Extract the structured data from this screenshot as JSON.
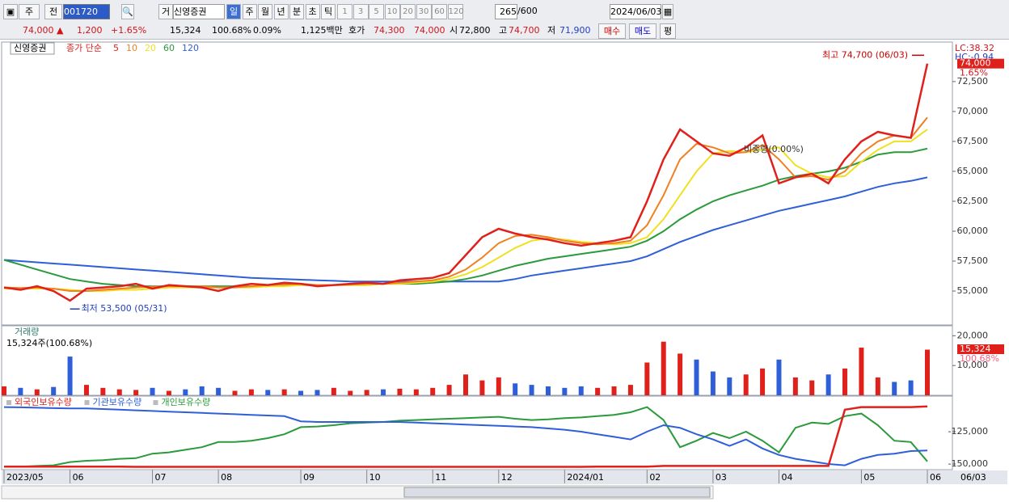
{
  "toolbar": {
    "period": "주",
    "prev": "전",
    "code": "001720",
    "market": "거",
    "name": "신영증권",
    "intervals": [
      "일",
      "주",
      "월",
      "년",
      "분",
      "초",
      "틱"
    ],
    "units": [
      "1",
      "3",
      "5",
      "10",
      "20",
      "30",
      "60",
      "120"
    ],
    "count": "265",
    "max": "/600",
    "date": "2024/06/03"
  },
  "quote": {
    "price": "74,000 ▲",
    "change": "1,200",
    "rate": "+1.65%",
    "volume": "15,324",
    "volume_rate": "100.68%",
    "turnover": "0.09%",
    "amount": "1,125백만",
    "ask_label": "호가",
    "ask": "74,300",
    "bid": "74,000",
    "open_label": "시",
    "open": "72,800",
    "high_label": "고",
    "high": "74,700",
    "low_label": "저",
    "low": "71,900",
    "buy": "매수",
    "sell": "매도",
    "avg": "평"
  },
  "chart_data": [
    {
      "type": "line",
      "title": "신영증권",
      "legend_title": "종가 단순",
      "indicators": [
        "LC:38.32",
        "HC:-0.94"
      ],
      "ylim": [
        52300,
        75600
      ],
      "yticks": [
        {
          "value": 55000,
          "label": "55,000"
        },
        {
          "value": 57500,
          "label": "57,500"
        },
        {
          "value": 60000,
          "label": "60,000"
        },
        {
          "value": 62500,
          "label": "62,500"
        },
        {
          "value": 65000,
          "label": "65,000"
        },
        {
          "value": 67500,
          "label": "67,500"
        },
        {
          "value": 70000,
          "label": "70,000"
        },
        {
          "value": 72500,
          "label": "72,500"
        }
      ],
      "grid": false,
      "high": {
        "label": "최고 74,700 (06/03)",
        "value": 74700
      },
      "low": {
        "label": "최저 53,500 (05/31)",
        "value": 53500
      },
      "note": "비중량(0.00%)",
      "last": {
        "value": 74000,
        "label": "74,000",
        "change": "1.65%"
      },
      "series": [
        {
          "name": "5",
          "color": "#e0201b",
          "values": [
            55300,
            55100,
            55400,
            55000,
            54200,
            55200,
            55300,
            55400,
            55600,
            55200,
            55500,
            55400,
            55300,
            55000,
            55400,
            55600,
            55500,
            55700,
            55600,
            55400,
            55500,
            55600,
            55700,
            55600,
            55900,
            56000,
            56100,
            56500,
            58000,
            59500,
            60200,
            59800,
            59500,
            59300,
            59000,
            58800,
            59000,
            59200,
            59500,
            62500,
            66000,
            68500,
            67500,
            66500,
            66300,
            67000,
            68000,
            64000,
            64500,
            64800,
            64000,
            66000,
            67500,
            68300,
            68000,
            67800,
            74000
          ]
        },
        {
          "name": "10",
          "color": "#f08020",
          "values": [
            55300,
            55250,
            55300,
            55200,
            55000,
            55000,
            55100,
            55200,
            55300,
            55350,
            55400,
            55400,
            55400,
            55300,
            55300,
            55400,
            55500,
            55550,
            55600,
            55500,
            55500,
            55550,
            55600,
            55600,
            55700,
            55800,
            55900,
            56200,
            56800,
            57800,
            59000,
            59600,
            59700,
            59500,
            59200,
            59000,
            58900,
            59000,
            59200,
            60500,
            63000,
            66000,
            67300,
            67000,
            66500,
            66600,
            67200,
            66000,
            64500,
            64600,
            64300,
            65000,
            66500,
            67500,
            68000,
            67800,
            69500
          ]
        },
        {
          "name": "20",
          "color": "#f0e020",
          "values": [
            55200,
            55200,
            55200,
            55200,
            55100,
            55000,
            55000,
            55100,
            55100,
            55200,
            55300,
            55300,
            55300,
            55300,
            55300,
            55300,
            55400,
            55400,
            55500,
            55500,
            55500,
            55500,
            55500,
            55600,
            55600,
            55700,
            55800,
            56000,
            56400,
            57000,
            57800,
            58600,
            59200,
            59400,
            59300,
            59100,
            59000,
            58900,
            59000,
            59500,
            61000,
            63000,
            65000,
            66500,
            66700,
            66600,
            66800,
            67000,
            65500,
            64800,
            64500,
            64600,
            65800,
            66800,
            67500,
            67500,
            68500
          ]
        },
        {
          "name": "60",
          "color": "#2a9a3a",
          "values": [
            57600,
            57200,
            56800,
            56400,
            56000,
            55800,
            55600,
            55500,
            55400,
            55400,
            55400,
            55400,
            55400,
            55400,
            55400,
            55400,
            55400,
            55500,
            55500,
            55500,
            55500,
            55500,
            55500,
            55600,
            55600,
            55600,
            55700,
            55800,
            56000,
            56300,
            56700,
            57100,
            57400,
            57700,
            57900,
            58100,
            58300,
            58500,
            58700,
            59200,
            60000,
            61000,
            61800,
            62500,
            63000,
            63400,
            63800,
            64300,
            64600,
            64800,
            65000,
            65300,
            65800,
            66400,
            66600,
            66600,
            66900
          ]
        },
        {
          "name": "120",
          "color": "#2f5fd8",
          "values": [
            57600,
            57500,
            57400,
            57300,
            57200,
            57100,
            57000,
            56900,
            56800,
            56700,
            56600,
            56500,
            56400,
            56300,
            56200,
            56100,
            56050,
            56000,
            55950,
            55900,
            55850,
            55800,
            55800,
            55800,
            55800,
            55800,
            55800,
            55800,
            55800,
            55800,
            55800,
            56000,
            56300,
            56500,
            56700,
            56900,
            57100,
            57300,
            57500,
            57900,
            58500,
            59100,
            59600,
            60100,
            60500,
            60900,
            61300,
            61700,
            62000,
            62300,
            62600,
            62900,
            63300,
            63700,
            64000,
            64200,
            64500
          ]
        }
      ]
    },
    {
      "type": "bar",
      "title": "거래량",
      "subtitle": "15,324주(100.68%)",
      "color": "#e0201b",
      "down_color": "#2f5fd8",
      "ylim": [
        0,
        22800
      ],
      "yticks": [
        {
          "value": 10000,
          "label": "10,000"
        },
        {
          "value": 20000,
          "label": "20,000"
        }
      ],
      "last": {
        "label": "15,324",
        "rate": "100.68%"
      },
      "values": [
        3000,
        2500,
        2000,
        2800,
        13000,
        3500,
        2500,
        2000,
        1800,
        2500,
        1500,
        2000,
        3000,
        2500,
        1500,
        2000,
        1800,
        2000,
        1500,
        1800,
        2500,
        1500,
        1800,
        2000,
        2200,
        2000,
        2500,
        3500,
        7000,
        5000,
        6000,
        4000,
        3500,
        3000,
        2500,
        3000,
        2500,
        3000,
        3500,
        11000,
        18000,
        14000,
        12000,
        8000,
        6000,
        7000,
        9000,
        12000,
        6000,
        5000,
        7000,
        9000,
        16000,
        6000,
        4500,
        5000,
        15324
      ]
    },
    {
      "type": "line",
      "cursor_label": "06/03",
      "categories": [
        "2023/05",
        null,
        null,
        null,
        "06",
        null,
        null,
        null,
        null,
        "07",
        null,
        null,
        null,
        "08",
        null,
        null,
        null,
        null,
        "09",
        null,
        null,
        null,
        "10",
        null,
        null,
        null,
        "11",
        null,
        null,
        null,
        "12",
        null,
        null,
        null,
        "2024/01",
        null,
        null,
        null,
        null,
        "02",
        null,
        null,
        null,
        "03",
        null,
        null,
        null,
        "04",
        null,
        null,
        null,
        null,
        "05",
        null,
        null,
        null,
        "06"
      ],
      "ylim": [
        -153750,
        -98750
      ],
      "yticks": [
        {
          "value": -125000,
          "label": "-125,000"
        },
        {
          "value": -150000,
          "label": "-150,000"
        }
      ],
      "series": [
        {
          "name": "외국인보유수량",
          "color": "#e0201b",
          "values": [
            -152000,
            -152000,
            -152000,
            -152000,
            -152000,
            -152000,
            -152000,
            -152000,
            -152200,
            -152200,
            -152200,
            -152200,
            -152200,
            -152200,
            -152200,
            -152200,
            -152200,
            -152200,
            -152200,
            -152200,
            -152200,
            -152200,
            -152200,
            -152200,
            -152200,
            -152200,
            -152200,
            -152200,
            -152200,
            -152200,
            -152200,
            -152200,
            -152200,
            -152200,
            -152200,
            -152200,
            -152000,
            -152000,
            -152000,
            -152000,
            -151500,
            -151500,
            -151500,
            -151500,
            -151500,
            -151500,
            -151500,
            -151500,
            -151500,
            -151500,
            -151500,
            -108000,
            -106000,
            -106000,
            -106000,
            -106000,
            -105500
          ]
        },
        {
          "name": "기관보유수량",
          "color": "#2f5fd8",
          "values": [
            -106000,
            -106200,
            -106500,
            -106800,
            -107000,
            -107000,
            -107500,
            -108000,
            -108500,
            -109000,
            -109500,
            -110000,
            -110500,
            -111000,
            -111500,
            -112000,
            -112500,
            -113000,
            -117000,
            -117500,
            -117500,
            -117500,
            -117500,
            -117500,
            -117500,
            -118000,
            -118500,
            -119000,
            -119500,
            -120000,
            -120500,
            -121000,
            -121500,
            -122500,
            -123500,
            -125000,
            -127000,
            -129000,
            -131000,
            -125000,
            -120000,
            -122000,
            -127000,
            -131000,
            -136000,
            -131000,
            -138000,
            -143000,
            -146000,
            -148000,
            -150000,
            -151000,
            -146000,
            -143000,
            -142000,
            -140000,
            -139500
          ]
        },
        {
          "name": "개인보유수량",
          "color": "#2a9a3a",
          "values": [
            -152000,
            -152000,
            -151500,
            -151000,
            -148500,
            -147500,
            -147000,
            -146000,
            -145500,
            -142000,
            -141000,
            -139000,
            -137000,
            -133000,
            -133000,
            -132000,
            -130000,
            -127000,
            -121500,
            -121000,
            -120000,
            -118500,
            -118000,
            -117500,
            -116500,
            -116000,
            -115500,
            -115000,
            -114500,
            -114000,
            -113500,
            -115000,
            -116000,
            -115500,
            -114500,
            -114000,
            -113000,
            -112000,
            -110000,
            -106000,
            -116000,
            -137000,
            -132000,
            -126000,
            -130000,
            -125000,
            -132000,
            -141000,
            -122000,
            -118000,
            -119000,
            -113000,
            -111000,
            -120000,
            -132000,
            -133000,
            -148000
          ]
        }
      ]
    }
  ]
}
